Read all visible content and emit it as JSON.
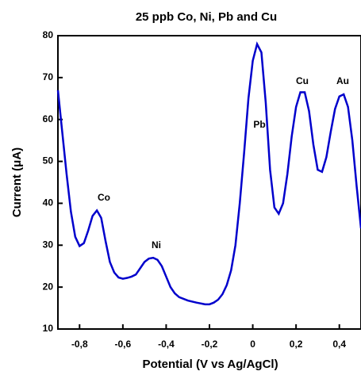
{
  "chart_data": {
    "type": "line",
    "title": "25 ppb Co, Ni, Pb and Cu",
    "x_label": "Potential (V vs Ag/AgCl)",
    "y_label": "Current (μA)",
    "x": [
      -0.9,
      -0.88,
      -0.86,
      -0.84,
      -0.82,
      -0.8,
      -0.78,
      -0.76,
      -0.74,
      -0.72,
      -0.7,
      -0.68,
      -0.66,
      -0.64,
      -0.62,
      -0.6,
      -0.58,
      -0.56,
      -0.54,
      -0.52,
      -0.5,
      -0.48,
      -0.46,
      -0.44,
      -0.42,
      -0.4,
      -0.38,
      -0.36,
      -0.34,
      -0.3,
      -0.26,
      -0.22,
      -0.2,
      -0.18,
      -0.16,
      -0.14,
      -0.12,
      -0.1,
      -0.08,
      -0.06,
      -0.04,
      -0.02,
      0,
      0.02,
      0.04,
      0.06,
      0.08,
      0.1,
      0.12,
      0.14,
      0.16,
      0.18,
      0.2,
      0.22,
      0.24,
      0.26,
      0.28,
      0.3,
      0.32,
      0.34,
      0.36,
      0.38,
      0.4,
      0.42,
      0.44,
      0.46,
      0.48,
      0.5
    ],
    "series": [
      {
        "color": "#0000cc",
        "values": [
          67,
          57,
          47,
          38,
          32,
          29.8,
          30.5,
          33.5,
          37,
          38.3,
          36.5,
          31,
          26,
          23.5,
          22.3,
          22,
          22.2,
          22.5,
          23,
          24.5,
          26,
          26.8,
          27,
          26.5,
          25,
          22.5,
          20,
          18.5,
          17.6,
          16.8,
          16.3,
          15.9,
          15.9,
          16.3,
          17,
          18.3,
          20.5,
          24,
          30,
          40,
          52,
          65,
          74,
          78,
          76,
          64,
          48,
          39,
          37.5,
          40,
          47,
          56,
          63,
          66.5,
          66.5,
          62,
          54,
          48,
          47.5,
          51,
          57,
          62.5,
          65.5,
          66,
          63,
          55,
          44,
          34
        ]
      }
    ],
    "annotations": [
      "Co",
      "Ni",
      "Pb",
      "Cu",
      "Au"
    ],
    "xlim": [
      -0.9,
      0.5
    ],
    "xticks": [
      {
        "value": -0.8,
        "label": "-0,8"
      },
      {
        "value": -0.6,
        "label": "-0,6"
      },
      {
        "value": -0.4,
        "label": "-0,4"
      },
      {
        "value": -0.2,
        "label": "-0,2"
      },
      0,
      {
        "value": 0.2,
        "label": "0,2"
      },
      {
        "value": 0.4,
        "label": "0,4"
      }
    ],
    "ylim": [
      10,
      80
    ],
    "yticks": [
      10,
      20,
      30,
      40,
      50,
      60,
      70,
      80
    ]
  }
}
